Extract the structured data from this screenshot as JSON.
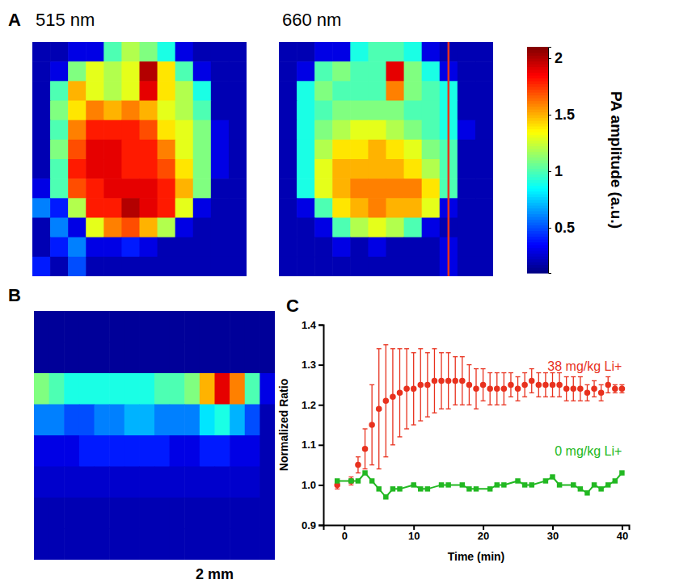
{
  "chart_data": [
    {
      "type": "heatmap",
      "panel": "A",
      "title": "515 nm",
      "color": "jet",
      "tick_labels": false,
      "zlim": [
        0.1,
        2.1
      ],
      "cells": [
        [
          0.2,
          0.2,
          0.3,
          0.3,
          1.0,
          1.2,
          1.1,
          0.9,
          0.3,
          0.2,
          0.2,
          0.2
        ],
        [
          0.2,
          0.3,
          1.1,
          1.3,
          1.2,
          1.3,
          2.0,
          1.4,
          1.0,
          0.3,
          0.2,
          0.2
        ],
        [
          0.2,
          1.0,
          1.5,
          1.3,
          1.2,
          1.3,
          1.9,
          1.4,
          1.2,
          0.9,
          0.2,
          0.2
        ],
        [
          0.2,
          1.1,
          1.4,
          1.6,
          1.5,
          1.6,
          1.5,
          1.3,
          1.2,
          1.0,
          0.2,
          0.2
        ],
        [
          0.2,
          1.0,
          1.6,
          1.8,
          1.8,
          1.8,
          1.7,
          1.4,
          1.3,
          1.1,
          0.3,
          0.2
        ],
        [
          0.2,
          1.1,
          1.7,
          1.9,
          1.9,
          1.8,
          1.8,
          1.6,
          1.3,
          1.1,
          0.3,
          0.2
        ],
        [
          0.2,
          1.0,
          1.8,
          1.9,
          1.9,
          1.8,
          1.8,
          1.7,
          1.4,
          1.1,
          0.3,
          0.2
        ],
        [
          0.3,
          1.0,
          1.7,
          1.8,
          1.9,
          1.9,
          1.9,
          1.8,
          1.5,
          1.1,
          0.2,
          0.2
        ],
        [
          0.6,
          0.4,
          1.2,
          1.8,
          1.8,
          2.0,
          1.9,
          1.8,
          1.3,
          0.3,
          0.2,
          0.2
        ],
        [
          0.2,
          0.6,
          0.3,
          1.3,
          1.6,
          1.7,
          1.5,
          1.2,
          0.3,
          0.2,
          0.2,
          0.2
        ],
        [
          0.2,
          0.4,
          0.6,
          0.3,
          0.3,
          0.4,
          0.3,
          0.2,
          0.2,
          0.2,
          0.2,
          0.2
        ],
        [
          0.4,
          0.2,
          0.5,
          0.2,
          0.2,
          0.2,
          0.2,
          0.2,
          0.2,
          0.2,
          0.2,
          0.2
        ]
      ]
    },
    {
      "type": "heatmap",
      "title": "660 nm",
      "color": "jet",
      "tick_labels": false,
      "zlim": [
        0.1,
        2.1
      ],
      "section": {
        "column": 9,
        "color": "#e8311e"
      },
      "colorbar": {
        "label": "PA amplitude (a.u.)",
        "ticks": [
          0.5,
          1,
          1.5,
          2
        ]
      },
      "cells": [
        [
          0.2,
          0.2,
          0.3,
          0.3,
          0.9,
          1.0,
          1.0,
          0.9,
          0.3,
          0.2,
          0.2,
          0.2
        ],
        [
          0.2,
          0.3,
          1.0,
          1.1,
          1.0,
          1.0,
          1.9,
          1.1,
          0.9,
          0.3,
          0.2,
          0.2
        ],
        [
          0.2,
          0.9,
          1.1,
          1.0,
          1.0,
          1.0,
          1.6,
          1.1,
          1.0,
          0.9,
          0.2,
          0.2
        ],
        [
          0.2,
          0.9,
          1.0,
          1.1,
          1.1,
          1.1,
          1.1,
          1.0,
          1.0,
          0.9,
          0.2,
          0.2
        ],
        [
          0.2,
          0.9,
          1.1,
          1.2,
          1.3,
          1.3,
          1.2,
          1.1,
          1.0,
          0.9,
          0.3,
          0.2
        ],
        [
          0.2,
          0.9,
          1.2,
          1.4,
          1.4,
          1.5,
          1.4,
          1.3,
          1.1,
          1.0,
          0.2,
          0.2
        ],
        [
          0.2,
          0.9,
          1.3,
          1.5,
          1.5,
          1.5,
          1.5,
          1.4,
          1.2,
          1.0,
          0.2,
          0.2
        ],
        [
          0.2,
          0.9,
          1.3,
          1.5,
          1.6,
          1.6,
          1.6,
          1.6,
          1.4,
          1.0,
          0.2,
          0.2
        ],
        [
          0.2,
          0.3,
          1.0,
          1.4,
          1.5,
          1.6,
          1.5,
          1.5,
          1.3,
          0.3,
          0.2,
          0.2
        ],
        [
          0.2,
          0.2,
          0.3,
          1.0,
          1.2,
          1.3,
          1.2,
          1.0,
          0.3,
          0.2,
          0.2,
          0.2
        ],
        [
          0.2,
          0.2,
          0.2,
          0.3,
          0.2,
          0.3,
          0.2,
          0.2,
          0.2,
          0.3,
          0.2,
          0.2
        ],
        [
          0.2,
          0.2,
          0.2,
          0.2,
          0.2,
          0.2,
          0.2,
          0.2,
          0.2,
          0.3,
          0.2,
          0.2
        ]
      ]
    },
    {
      "type": "heatmap",
      "panel": "B",
      "annotation": "2 mm",
      "color": "jet",
      "tick_labels": false,
      "zlim": [
        0.1,
        2.1
      ],
      "cells": [
        [
          0.15,
          0.15,
          0.15,
          0.15,
          0.15,
          0.15,
          0.15,
          0.15,
          0.15,
          0.15,
          0.15,
          0.15,
          0.15,
          0.15,
          0.15,
          0.15
        ],
        [
          0.15,
          0.15,
          0.15,
          0.15,
          0.15,
          0.15,
          0.15,
          0.15,
          0.15,
          0.15,
          0.15,
          0.15,
          0.15,
          0.15,
          0.15,
          0.15
        ],
        [
          1.1,
          1.0,
          0.9,
          0.9,
          0.9,
          0.9,
          0.9,
          0.9,
          1.0,
          1.0,
          1.1,
          1.5,
          1.9,
          1.6,
          1.0,
          0.3
        ],
        [
          0.6,
          0.6,
          0.5,
          0.5,
          0.6,
          0.6,
          0.7,
          0.7,
          0.6,
          0.6,
          0.6,
          0.8,
          0.9,
          0.7,
          0.5,
          0.2
        ],
        [
          0.3,
          0.3,
          0.3,
          0.4,
          0.4,
          0.4,
          0.4,
          0.4,
          0.4,
          0.3,
          0.3,
          0.4,
          0.4,
          0.3,
          0.3,
          0.2
        ],
        [
          0.25,
          0.25,
          0.25,
          0.25,
          0.25,
          0.25,
          0.25,
          0.25,
          0.25,
          0.25,
          0.25,
          0.25,
          0.25,
          0.25,
          0.25,
          0.2
        ],
        [
          0.2,
          0.2,
          0.2,
          0.2,
          0.2,
          0.2,
          0.2,
          0.2,
          0.2,
          0.2,
          0.2,
          0.2,
          0.2,
          0.2,
          0.2,
          0.2
        ],
        [
          0.2,
          0.2,
          0.2,
          0.2,
          0.2,
          0.2,
          0.2,
          0.2,
          0.2,
          0.2,
          0.2,
          0.2,
          0.2,
          0.2,
          0.2,
          0.2
        ]
      ]
    },
    {
      "type": "line",
      "panel": "C",
      "x_label": "Time (min)",
      "y_label": "Normalized Ratio",
      "xlim": [
        -3,
        41
      ],
      "xticks": [
        0,
        10,
        20,
        30,
        40
      ],
      "ylim": [
        0.9,
        1.4
      ],
      "yticks": [
        0.9,
        {
          "value": 1.0,
          "label": "1.0"
        },
        1.1,
        1.2,
        1.3,
        1.4
      ],
      "series": [
        {
          "name": "38 mg/kg Li+",
          "color": "#e8311e",
          "marker": "circle",
          "line_style": "none",
          "x": [
            -1,
            1,
            2,
            3,
            4,
            5,
            6,
            7,
            8,
            9,
            10,
            11,
            12,
            13,
            14,
            15,
            16,
            17,
            18,
            19,
            20,
            21,
            22,
            23,
            24,
            25,
            26,
            27,
            28,
            29,
            30,
            31,
            32,
            33,
            34,
            35,
            36,
            37,
            38,
            39,
            40
          ],
          "values": [
            1.0,
            1.01,
            1.05,
            1.09,
            1.15,
            1.19,
            1.21,
            1.22,
            1.23,
            1.24,
            1.24,
            1.25,
            1.25,
            1.26,
            1.26,
            1.26,
            1.26,
            1.26,
            1.25,
            1.24,
            1.25,
            1.24,
            1.24,
            1.24,
            1.25,
            1.24,
            1.25,
            1.26,
            1.25,
            1.25,
            1.25,
            1.25,
            1.24,
            1.24,
            1.24,
            1.23,
            1.24,
            1.23,
            1.25,
            1.24,
            1.24
          ],
          "errors": [
            0.01,
            0.01,
            0.02,
            0.05,
            0.1,
            0.15,
            0.14,
            0.12,
            0.11,
            0.1,
            0.09,
            0.09,
            0.08,
            0.08,
            0.07,
            0.07,
            0.06,
            0.06,
            0.05,
            0.05,
            0.04,
            0.04,
            0.04,
            0.04,
            0.03,
            0.03,
            0.03,
            0.03,
            0.03,
            0.03,
            0.03,
            0.03,
            0.03,
            0.03,
            0.03,
            0.02,
            0.02,
            0.02,
            0.02,
            0.01,
            0.01
          ]
        },
        {
          "name": "0 mg/kg Li+",
          "color": "#22b822",
          "marker": "square",
          "line_style": "solid",
          "x": [
            -1,
            1,
            2,
            3,
            4,
            5,
            6,
            7,
            8,
            10,
            11,
            12,
            14,
            15,
            17,
            18,
            19,
            21,
            22,
            23,
            25,
            26,
            27,
            29,
            30,
            31,
            33,
            34,
            35,
            36,
            37,
            38,
            39,
            40
          ],
          "values": [
            1.01,
            1.01,
            1.01,
            1.03,
            1.01,
            0.99,
            0.97,
            0.99,
            0.99,
            1.0,
            0.99,
            0.99,
            1.0,
            1.0,
            1.0,
            0.99,
            0.99,
            0.99,
            1.0,
            1.0,
            1.01,
            1.0,
            1.0,
            1.01,
            1.02,
            1.0,
            1.0,
            0.99,
            0.98,
            1.0,
            0.99,
            1.0,
            1.01,
            1.03
          ]
        }
      ]
    }
  ]
}
